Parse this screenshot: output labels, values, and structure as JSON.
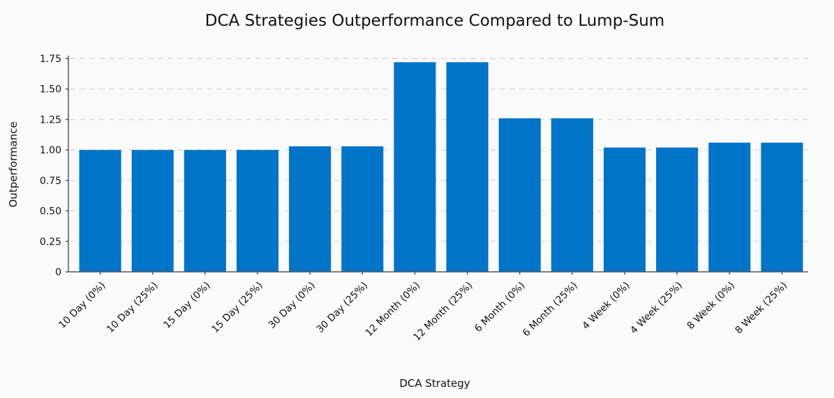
{
  "chart_data": {
    "type": "bar",
    "title": "DCA Strategies Outperformance Compared to Lump-Sum",
    "xlabel": "DCA Strategy",
    "ylabel": "Outperformance",
    "categories": [
      "10 Day (0%)",
      "10 Day (25%)",
      "15 Day (0%)",
      "15 Day (25%)",
      "30 Day (0%)",
      "30 Day (25%)",
      "12 Month (0%)",
      "12 Month (25%)",
      "6 Month (0%)",
      "6 Month (25%)",
      "4 Week (0%)",
      "4 Week (25%)",
      "8 Week (0%)",
      "8 Week (25%)"
    ],
    "values": [
      1.0,
      1.0,
      1.0,
      1.0,
      1.03,
      1.03,
      1.72,
      1.72,
      1.26,
      1.26,
      1.02,
      1.02,
      1.06,
      1.06
    ],
    "yticks": [
      "0",
      "0.25",
      "0.50",
      "0.75",
      "1.00",
      "1.25",
      "1.50",
      "1.75"
    ],
    "ylim": [
      0,
      1.75
    ],
    "grid": true,
    "bar_color": "#0074c8"
  }
}
